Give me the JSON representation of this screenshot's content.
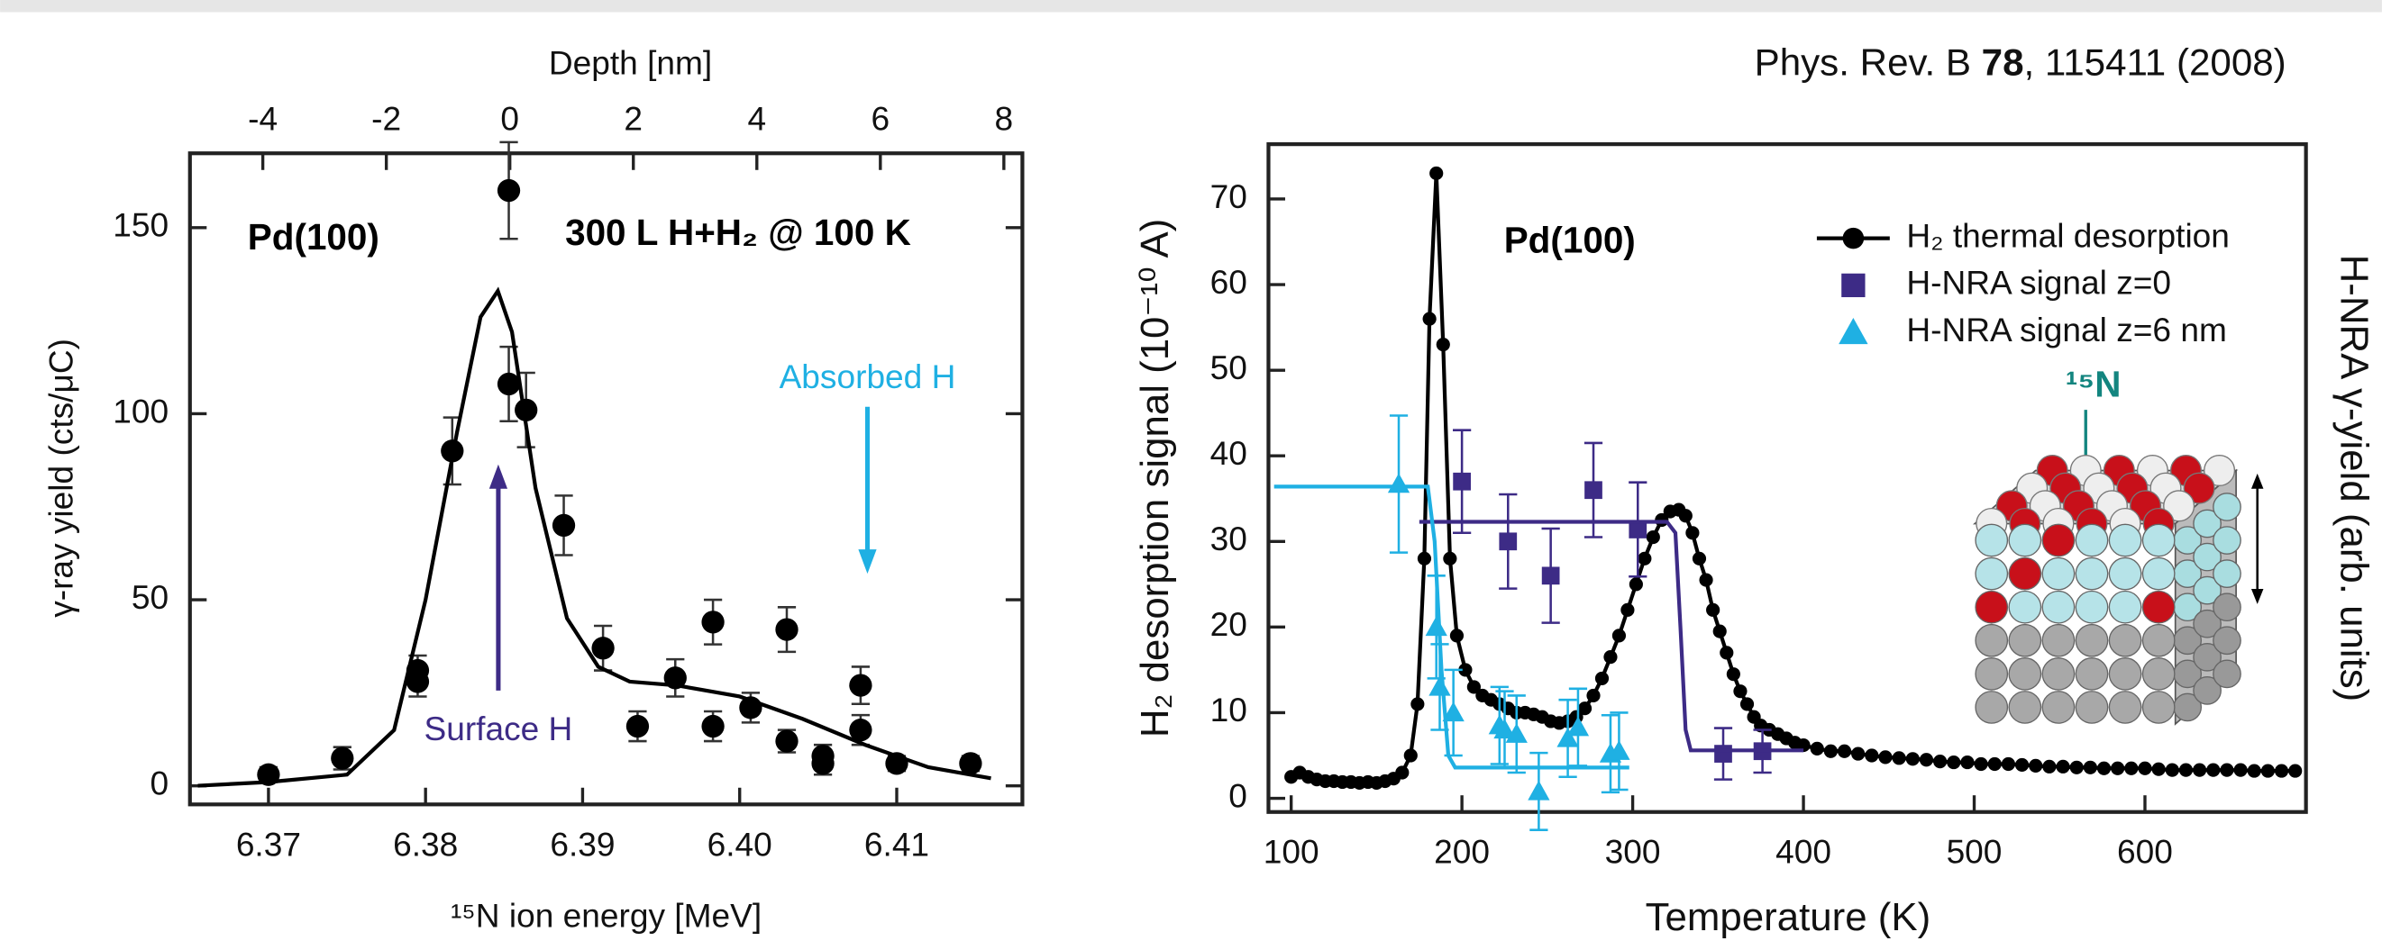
{
  "citation": {
    "prefix": "Phys. Rev. B ",
    "volume": "78",
    "suffix": ", 115411 (2008)"
  },
  "chart_data": [
    {
      "type": "scatter",
      "x_label": "¹⁵N ion energy [MeV]",
      "y_label": "γ-ray yield (cts/μC)",
      "x2_label": "Depth  [nm]",
      "xlim": [
        6.365,
        6.418
      ],
      "xticks": [
        6.37,
        6.38,
        6.39,
        {
          "value": 6.4,
          "label": "6.40"
        },
        6.41
      ],
      "ylim": [
        -5,
        170
      ],
      "yticks": [
        0,
        50,
        100,
        150
      ],
      "x2lim": [
        -5.18,
        8.3
      ],
      "x2ticks": [
        -4,
        -2,
        0,
        2,
        4,
        6,
        8
      ],
      "annotations": [
        {
          "text": "Pd(100)",
          "color": "#000000"
        },
        {
          "text": "300 L H+H₂ @ 100 K",
          "color": "#000000"
        },
        {
          "text": "Surface H",
          "color": "#3d2b86"
        },
        {
          "text": "Absorbed H",
          "color": "#1fb0e3"
        }
      ],
      "series": [
        {
          "type": "scatter",
          "marker": "circle",
          "color": "#000000",
          "x": [
            6.37,
            6.3747,
            6.3795,
            6.3795,
            6.3817,
            6.3853,
            6.3853,
            6.3864,
            6.3888,
            6.3913,
            6.3935,
            6.3959,
            6.3983,
            6.3983,
            6.4007,
            6.403,
            6.403,
            6.4053,
            6.4053,
            6.4077,
            6.4077,
            6.41,
            6.4147
          ],
          "values": [
            3,
            7.4,
            31,
            28,
            90,
            160,
            108,
            101,
            70,
            37,
            16,
            29,
            16,
            44,
            21,
            42,
            12,
            8,
            6,
            27,
            15,
            6,
            6
          ],
          "errors": [
            2,
            3,
            4,
            4,
            9,
            13,
            10,
            10,
            8,
            6,
            4,
            5,
            4,
            6,
            4,
            6,
            3,
            3,
            3,
            5,
            4,
            2,
            2
          ]
        },
        {
          "type": "line",
          "color": "#000000",
          "x": [
            6.3655,
            6.37,
            6.375,
            6.378,
            6.38,
            6.382,
            6.3835,
            6.3846,
            6.3855,
            6.387,
            6.389,
            6.391,
            6.393,
            6.396,
            6.4,
            6.404,
            6.408,
            6.412,
            6.416
          ],
          "values": [
            0,
            1,
            3,
            15,
            50,
            95,
            126,
            133,
            122,
            80,
            45,
            32,
            28,
            27,
            24,
            18,
            11,
            5,
            2
          ]
        }
      ]
    },
    {
      "type": "line",
      "x_label": "Temperature (K)",
      "y_label": "H₂ desorption signal  (10⁻¹⁰ A)",
      "y2_label": "H-NRA γ-yield (arb. units)",
      "xlim": [
        86.7,
        694.3
      ],
      "xticks": [
        100,
        200,
        300,
        400,
        500,
        600
      ],
      "ylim": [
        -1.6,
        76.4
      ],
      "yticks": [
        0,
        10,
        20,
        30,
        40,
        50,
        60,
        70
      ],
      "annotations": [
        {
          "text": "Pd(100)",
          "color": "#000000"
        },
        {
          "text": "¹⁵N",
          "color": "#13857f"
        }
      ],
      "series": [
        {
          "name": "H₂ thermal desorption",
          "type": "line",
          "marker": "circle",
          "color": "#000000",
          "x": [
            100,
            105,
            110,
            115,
            120,
            125,
            130,
            135,
            140,
            145,
            150,
            155,
            160,
            165,
            170,
            174,
            178,
            181,
            185,
            189,
            193,
            197,
            202,
            207,
            212,
            217,
            222,
            227,
            232,
            237,
            242,
            247,
            252,
            257,
            262,
            267,
            272,
            277,
            282,
            287,
            292,
            297,
            302,
            307,
            312,
            317,
            322,
            327,
            331,
            335,
            339,
            343,
            347,
            351,
            355,
            359,
            363,
            367,
            371,
            375,
            380,
            385,
            390,
            395,
            400,
            408,
            416,
            424,
            432,
            440,
            448,
            456,
            464,
            472,
            480,
            488,
            496,
            504,
            512,
            520,
            528,
            536,
            544,
            552,
            560,
            568,
            576,
            584,
            592,
            600,
            608,
            616,
            624,
            632,
            640,
            648,
            656,
            664,
            672,
            680,
            688
          ],
          "values": [
            2.5,
            3.0,
            2.5,
            2.2,
            2.0,
            2.0,
            1.9,
            1.9,
            1.8,
            1.9,
            1.8,
            2.0,
            2.3,
            3.0,
            5.0,
            11,
            28,
            56,
            73,
            53,
            28,
            19,
            15,
            13,
            12,
            11.5,
            11,
            10.5,
            10,
            10,
            9.8,
            9.5,
            9,
            8.8,
            9,
            9.5,
            10.5,
            12,
            14,
            16.5,
            19,
            22,
            25,
            28,
            30.5,
            32.5,
            33.5,
            33.7,
            33,
            31,
            28,
            25.5,
            22,
            19.5,
            17,
            14.5,
            12.5,
            11,
            9.5,
            8.5,
            8,
            7.5,
            7,
            6.5,
            6.2,
            5.8,
            5.5,
            5.5,
            5.2,
            5,
            4.8,
            4.7,
            4.6,
            4.5,
            4.3,
            4.2,
            4.2,
            4.0,
            4.0,
            4.0,
            3.9,
            3.8,
            3.7,
            3.7,
            3.6,
            3.6,
            3.5,
            3.5,
            3.5,
            3.5,
            3.4,
            3.3,
            3.3,
            3.3,
            3.3,
            3.3,
            3.3,
            3.2,
            3.2,
            3.2,
            3.2
          ]
        },
        {
          "name": "H-NRA signal z=0",
          "type": "scatter",
          "marker": "square",
          "color": "#3d2b86",
          "x": [
            200,
            227,
            252,
            277,
            303,
            353,
            376
          ],
          "values": [
            37,
            30,
            26,
            36,
            31.4,
            5.2,
            5.5
          ],
          "errors": [
            6,
            5.5,
            5.5,
            5.5,
            5.5,
            3,
            2.5
          ]
        },
        {
          "name": "H-NRA signal z=6 nm",
          "type": "scatter",
          "marker": "triangle",
          "color": "#1fb0e3",
          "x": [
            163,
            185,
            187,
            195,
            222,
            225,
            232,
            245,
            262,
            268,
            287,
            292
          ],
          "values": [
            36.7,
            20,
            13,
            10,
            8.5,
            8,
            7.5,
            0.8,
            7,
            8.3,
            5.2,
            5.5
          ],
          "errors": [
            8,
            6,
            5,
            5,
            4.5,
            4.5,
            4.5,
            4.5,
            4.5,
            4.5,
            4.5,
            4.5
          ]
        },
        {
          "type": "line",
          "color": "#3d2b86",
          "x": [
            175,
            320,
            325,
            328,
            331,
            334,
            400
          ],
          "values": [
            32.3,
            32.3,
            31,
            20,
            8,
            5.6,
            5.6
          ]
        },
        {
          "type": "line",
          "color": "#1fb0e3",
          "x": [
            90,
            180,
            184,
            188,
            192,
            196,
            298
          ],
          "values": [
            36.4,
            36.4,
            30,
            15,
            5,
            3.6,
            3.6
          ]
        }
      ]
    }
  ]
}
